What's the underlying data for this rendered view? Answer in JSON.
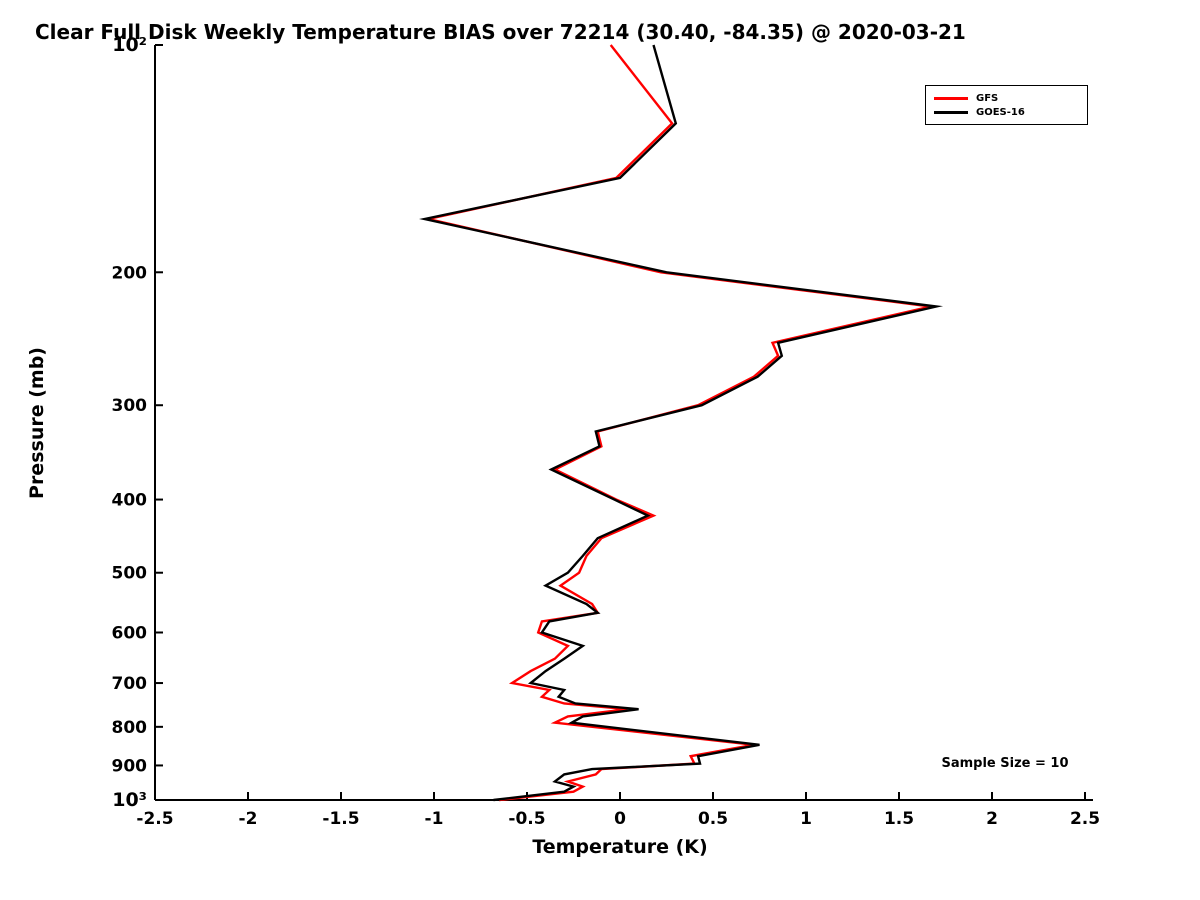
{
  "title": "Clear Full Disk Weekly Temperature BIAS over 72214 (30.40, -84.35) @ 2020-03-21",
  "annotation": {
    "sample_size": "Sample Size = 10"
  },
  "chart_data": {
    "type": "line",
    "title": "Clear Full Disk Weekly Temperature BIAS over 72214 (30.40, -84.35) @ 2020-03-21",
    "xlabel": "Temperature (K)",
    "ylabel": "Pressure (mb)",
    "grid": false,
    "legend_position": "upper right",
    "x_axis": {
      "min": -2.5,
      "max": 2.5,
      "ticks": [
        -2.5,
        -2,
        -1.5,
        -1,
        -0.5,
        0,
        0.5,
        1,
        1.5,
        2,
        2.5
      ],
      "tick_labels": [
        "-2.5",
        "-2",
        "-1.5",
        "-1",
        "-0.5",
        "0",
        "0.5",
        "1",
        "1.5",
        "2",
        "2.5"
      ]
    },
    "y_axis": {
      "scale": "log",
      "min": 100,
      "max": 1000,
      "direction": "pressure increases downward",
      "ticks": [
        100,
        200,
        300,
        400,
        500,
        600,
        700,
        800,
        900,
        1000
      ],
      "tick_labels": [
        "10²",
        "200",
        "300",
        "400",
        "500",
        "600",
        "700",
        "800",
        "900",
        "10³"
      ]
    },
    "series": [
      {
        "name": "GFS",
        "color": "#ff0000",
        "points": [
          [
            100,
            -0.05
          ],
          [
            127,
            0.28
          ],
          [
            150,
            -0.02
          ],
          [
            170,
            -1.03
          ],
          [
            200,
            0.22
          ],
          [
            222,
            1.67
          ],
          [
            248,
            0.82
          ],
          [
            258,
            0.85
          ],
          [
            275,
            0.72
          ],
          [
            300,
            0.42
          ],
          [
            325,
            -0.12
          ],
          [
            340,
            -0.1
          ],
          [
            365,
            -0.35
          ],
          [
            400,
            -0.02
          ],
          [
            420,
            0.18
          ],
          [
            450,
            -0.1
          ],
          [
            475,
            -0.18
          ],
          [
            500,
            -0.22
          ],
          [
            520,
            -0.32
          ],
          [
            550,
            -0.15
          ],
          [
            565,
            -0.12
          ],
          [
            580,
            -0.42
          ],
          [
            600,
            -0.44
          ],
          [
            625,
            -0.28
          ],
          [
            650,
            -0.35
          ],
          [
            675,
            -0.48
          ],
          [
            700,
            -0.58
          ],
          [
            715,
            -0.38
          ],
          [
            730,
            -0.42
          ],
          [
            745,
            -0.3
          ],
          [
            758,
            0.04
          ],
          [
            775,
            -0.28
          ],
          [
            790,
            -0.35
          ],
          [
            845,
            0.72
          ],
          [
            875,
            0.38
          ],
          [
            895,
            0.4
          ],
          [
            910,
            -0.1
          ],
          [
            925,
            -0.13
          ],
          [
            945,
            -0.28
          ],
          [
            960,
            -0.2
          ],
          [
            975,
            -0.25
          ],
          [
            1000,
            -0.65
          ]
        ]
      },
      {
        "name": "GOES-16",
        "color": "#000000",
        "points": [
          [
            100,
            0.18
          ],
          [
            127,
            0.3
          ],
          [
            150,
            0.0
          ],
          [
            170,
            -1.05
          ],
          [
            200,
            0.25
          ],
          [
            222,
            1.7
          ],
          [
            248,
            0.85
          ],
          [
            258,
            0.87
          ],
          [
            275,
            0.74
          ],
          [
            300,
            0.44
          ],
          [
            325,
            -0.13
          ],
          [
            340,
            -0.11
          ],
          [
            365,
            -0.37
          ],
          [
            400,
            -0.03
          ],
          [
            420,
            0.15
          ],
          [
            450,
            -0.12
          ],
          [
            475,
            -0.2
          ],
          [
            500,
            -0.28
          ],
          [
            520,
            -0.4
          ],
          [
            550,
            -0.18
          ],
          [
            565,
            -0.12
          ],
          [
            580,
            -0.38
          ],
          [
            600,
            -0.42
          ],
          [
            625,
            -0.2
          ],
          [
            650,
            -0.3
          ],
          [
            675,
            -0.4
          ],
          [
            700,
            -0.48
          ],
          [
            715,
            -0.3
          ],
          [
            730,
            -0.33
          ],
          [
            745,
            -0.24
          ],
          [
            758,
            0.1
          ],
          [
            775,
            -0.2
          ],
          [
            790,
            -0.26
          ],
          [
            845,
            0.75
          ],
          [
            875,
            0.42
          ],
          [
            895,
            0.43
          ],
          [
            910,
            -0.15
          ],
          [
            925,
            -0.3
          ],
          [
            945,
            -0.35
          ],
          [
            960,
            -0.25
          ],
          [
            975,
            -0.3
          ],
          [
            1000,
            -0.68
          ]
        ]
      }
    ],
    "annotations": [
      "Sample Size = 10"
    ]
  }
}
